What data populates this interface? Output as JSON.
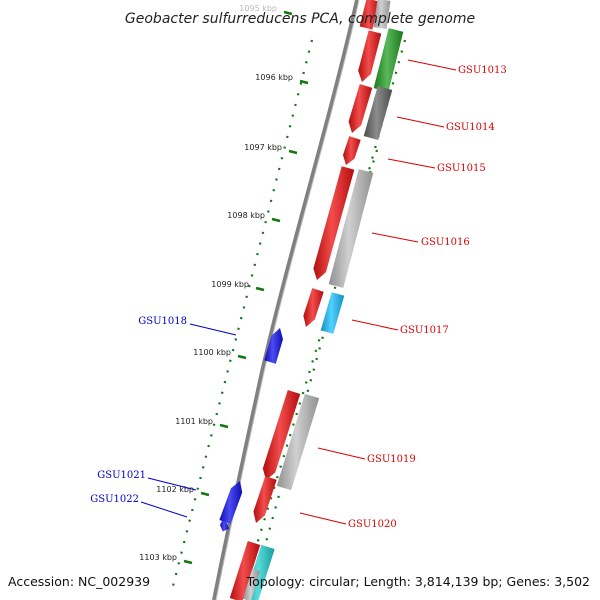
{
  "title": "Geobacter sulfurreducens PCA, complete genome",
  "footer": {
    "accession": "Accession: NC_002939",
    "summary": "Topology: circular; Length: 3,814,139 bp; Genes: 3,502"
  },
  "colors": {
    "backbone": "#7a7a7a",
    "reverse_gene": "#1010ee",
    "forward_label": "#dd0000",
    "reverse_label": "#0000cc",
    "tick": "#117711",
    "cds_red": "#ee1111",
    "green": "#22a022",
    "dark_gray": "#666666",
    "light_gray": "#c0c0c0",
    "light_blue": "#18c0ff",
    "cyan": "#20d0d0"
  },
  "ruler_labels": [
    "1095 kbp",
    "1096 kbp",
    "1097 kbp",
    "1098 kbp",
    "1099 kbp",
    "1100 kbp",
    "1101 kbp",
    "1102 kbp",
    "1103 kbp"
  ],
  "gene_labels": [
    {
      "id": "GSU1013",
      "strand": "forward"
    },
    {
      "id": "GSU1014",
      "strand": "forward"
    },
    {
      "id": "GSU1015",
      "strand": "forward"
    },
    {
      "id": "GSU1016",
      "strand": "forward"
    },
    {
      "id": "GSU1017",
      "strand": "forward"
    },
    {
      "id": "GSU1018",
      "strand": "reverse"
    },
    {
      "id": "GSU1019",
      "strand": "forward"
    },
    {
      "id": "GSU1020",
      "strand": "forward"
    },
    {
      "id": "GSU1021",
      "strand": "reverse"
    },
    {
      "id": "GSU1022",
      "strand": "reverse"
    }
  ]
}
